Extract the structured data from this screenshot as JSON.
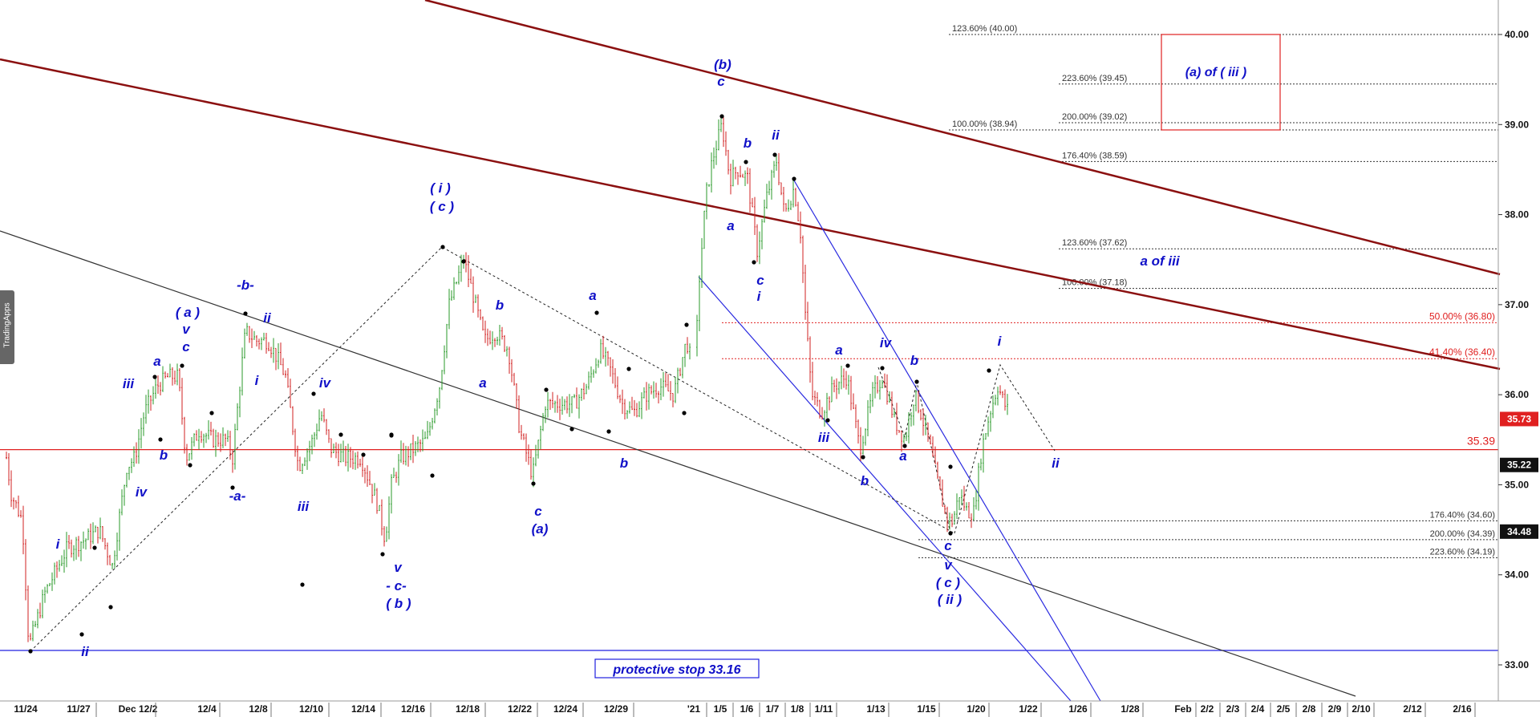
{
  "watermark": "TradingApps",
  "chart_data": {
    "type": "candlestick",
    "title": "",
    "y_range": [
      32.6,
      40.4
    ],
    "y_ticks": [
      "33.00",
      "34.00",
      "35.00",
      "36.00",
      "37.00",
      "38.00",
      "39.00",
      "40.00"
    ],
    "x_ticks": [
      "11/24",
      "11/27",
      "Dec 12/2",
      "12/4",
      "12/8",
      "12/10",
      "12/14",
      "12/16",
      "12/18",
      "12/22",
      "12/24",
      "12/29",
      "'21",
      "1/5",
      "1/6",
      "1/7",
      "1/8",
      "1/11",
      "1/13",
      "1/15",
      "1/20",
      "1/22",
      "1/26",
      "1/28",
      "Feb",
      "2/2",
      "2/3",
      "2/4",
      "2/5",
      "2/8",
      "2/9",
      "2/10",
      "2/12",
      "2/16"
    ],
    "price_tags": [
      {
        "label": "35.73",
        "value": 35.73,
        "color": "#e02020"
      },
      {
        "label": "35.22",
        "value": 35.22,
        "color": "#111111"
      },
      {
        "label": "34.48",
        "value": 34.48,
        "color": "#111111"
      }
    ],
    "horizontal_lines": [
      {
        "label": "35.39",
        "value": 35.39,
        "color": "#e02020"
      },
      {
        "label": "",
        "value": 33.16,
        "color": "#2020e0"
      }
    ],
    "fib_levels": [
      {
        "label": "123.60% (40.00)",
        "value": 40.0,
        "color": "#333333"
      },
      {
        "label": "223.60% (39.45)",
        "value": 39.45,
        "color": "#333333"
      },
      {
        "label": "200.00% (39.02)",
        "value": 39.02,
        "color": "#333333"
      },
      {
        "label": "100.00% (38.94)",
        "value": 38.94,
        "color": "#333333"
      },
      {
        "label": "176.40% (38.59)",
        "value": 38.59,
        "color": "#333333"
      },
      {
        "label": "123.60% (37.62)",
        "value": 37.62,
        "color": "#333333"
      },
      {
        "label": "100.00% (37.18)",
        "value": 37.18,
        "color": "#333333"
      },
      {
        "label": "50.00% (36.80)",
        "value": 36.8,
        "color": "#e02020"
      },
      {
        "label": "41.40% (36.40)",
        "value": 36.4,
        "color": "#e02020"
      },
      {
        "label": "176.40% (34.60)",
        "value": 34.6,
        "color": "#333333"
      },
      {
        "label": "200.00% (34.39)",
        "value": 34.39,
        "color": "#333333"
      },
      {
        "label": "223.60% (34.19)",
        "value": 34.19,
        "color": "#333333"
      }
    ],
    "target_box_label": "(a) of ( iii )",
    "annotation_a_of_iii": "a of iii",
    "stop_label": "protective stop 33.16",
    "wave_labels": [
      "i",
      "ii",
      "iii",
      "iv",
      "a",
      "b",
      "c",
      "v",
      "( a )",
      "-a-",
      "-b-",
      "- c-",
      "( b )",
      "( i )",
      "( c )",
      "(a)",
      "(b)",
      "( ii )"
    ],
    "colors": {
      "up": "#2a9a2a",
      "down": "#d02020",
      "wave": "#1010c8",
      "channel": "#8b1010",
      "trend": "#2020e0"
    }
  }
}
